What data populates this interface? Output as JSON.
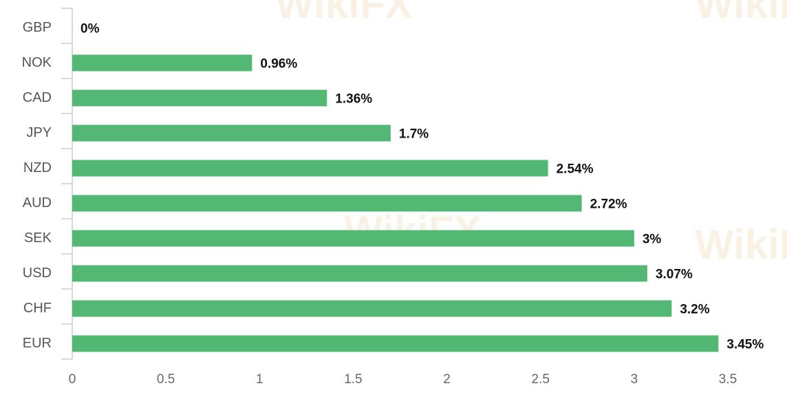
{
  "chart_data": {
    "type": "bar",
    "orientation": "horizontal",
    "watermark": "WikiFX",
    "categories": [
      "GBP",
      "NOK",
      "CAD",
      "JPY",
      "NZD",
      "AUD",
      "SEK",
      "USD",
      "CHF",
      "EUR"
    ],
    "values": [
      0,
      0.96,
      1.36,
      1.7,
      2.54,
      2.72,
      3,
      3.07,
      3.2,
      3.45
    ],
    "value_labels": [
      "0%",
      "0.96%",
      "1.36%",
      "1.7%",
      "2.54%",
      "2.72%",
      "3%",
      "3.07%",
      "3.2%",
      "3.45%"
    ],
    "color": "#52b874",
    "xlim": [
      0,
      3.5
    ],
    "xticks": [
      0,
      0.5,
      1,
      1.5,
      2,
      2.5,
      3,
      3.5
    ],
    "grid": false
  }
}
